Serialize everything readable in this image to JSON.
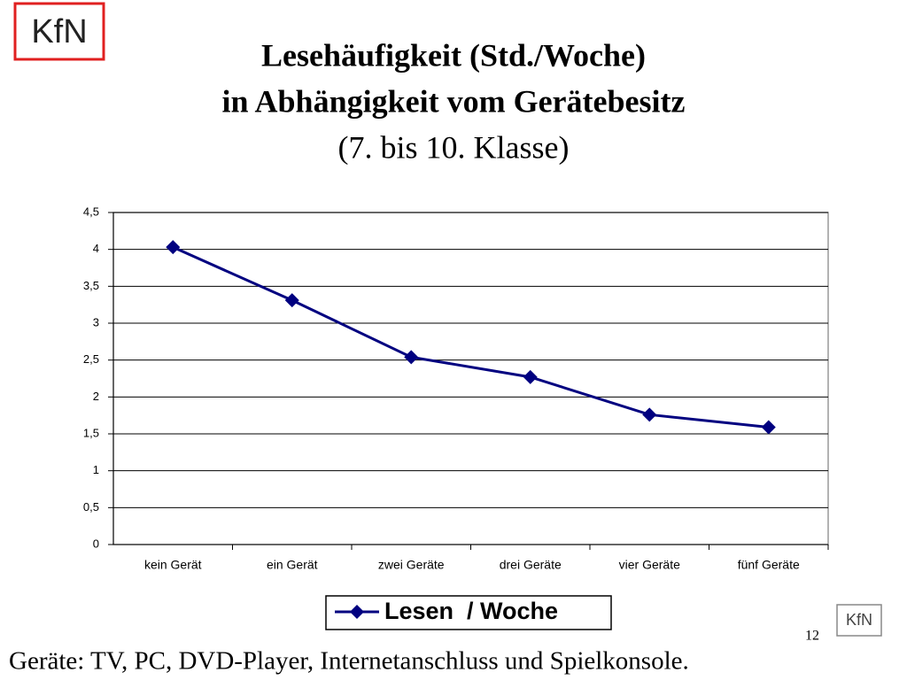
{
  "logo": "KfN",
  "footnote": "Geräte: TV, PC, DVD-Player, Internetanschluss und Spielkonsole.",
  "page_number": "12",
  "chart_data": {
    "type": "line",
    "title": [
      "Lesehäufigkeit (Std./Woche)",
      "in Abhängigkeit vom Gerätebesitz"
    ],
    "subtitle": "(7. bis 10. Klasse)",
    "categories": [
      "kein Gerät",
      "ein Gerät",
      "zwei Geräte",
      "drei Geräte",
      "vier Geräte",
      "fünf Geräte"
    ],
    "series": [
      {
        "name": "Lesen  / Woche",
        "color": "#000080",
        "values": [
          4.03,
          3.31,
          2.54,
          2.27,
          1.76,
          1.59
        ]
      }
    ],
    "ylim": [
      0,
      4.5
    ],
    "yticks": [
      0,
      {
        "value": 0.5,
        "label": "0,5"
      },
      1,
      {
        "value": 1.5,
        "label": "1,5"
      },
      2,
      {
        "value": 2.5,
        "label": "2,5"
      },
      3,
      {
        "value": 3.5,
        "label": "3,5"
      },
      4,
      {
        "value": 4.5,
        "label": "4,5"
      }
    ],
    "grid": true,
    "legend": "bottom"
  }
}
